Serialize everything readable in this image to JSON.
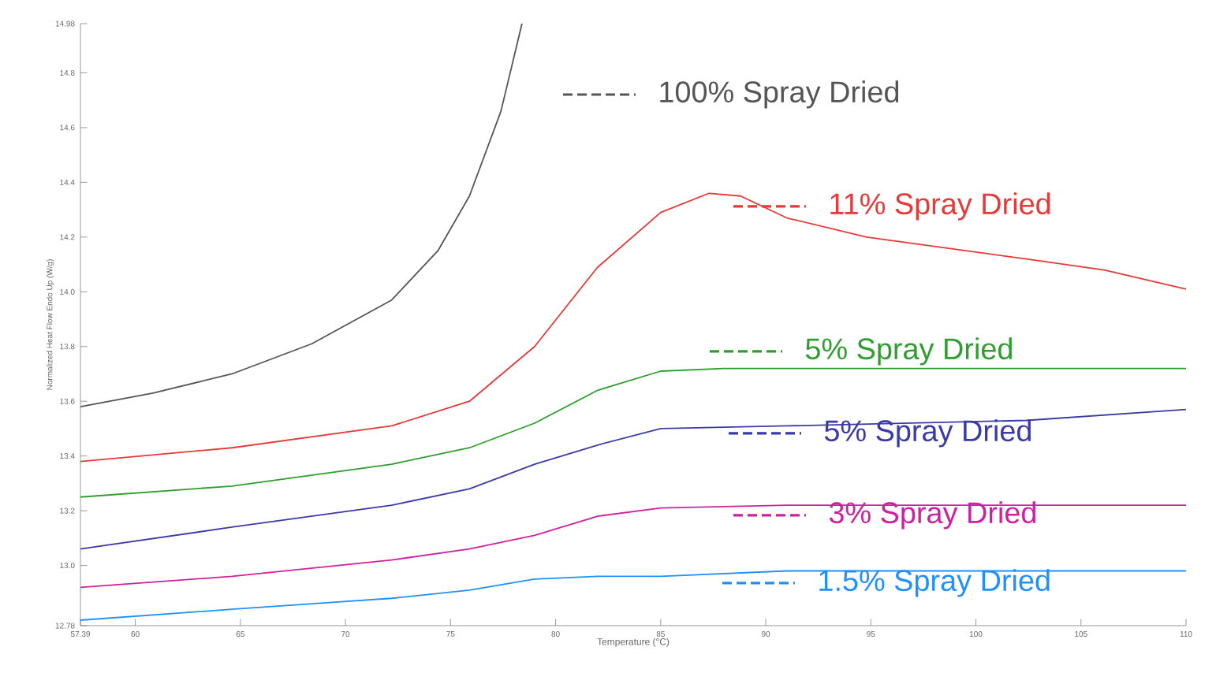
{
  "chart_data": {
    "type": "line",
    "xlabel": "Temperature (°C)",
    "ylabel": "Normalized Heat Flow Endo Up (W/g)",
    "xlim": [
      57.39,
      110
    ],
    "xticks": [
      57.39,
      60,
      65,
      70,
      75,
      80,
      85,
      90,
      95,
      100,
      105,
      110
    ],
    "ylim": [
      12.78,
      14.98
    ],
    "legend": "right",
    "yticks": [
      12.78,
      {
        "value": 13.0,
        "label": "13.0"
      },
      13.2,
      13.4,
      13.6,
      13.8,
      {
        "value": 14.0,
        "label": "14.0"
      },
      14.2,
      14.4,
      14.6,
      14.8,
      14.98
    ],
    "series": [
      {
        "name": "100% Spray Dried",
        "color": "#555555",
        "x": [
          57.39,
          60.83,
          64.6,
          68.4,
          72.2,
          74.4,
          75.9,
          77.4,
          78.4
        ],
        "values": [
          13.58,
          13.63,
          13.7,
          13.81,
          13.97,
          14.15,
          14.35,
          14.66,
          14.98
        ]
      },
      {
        "name": "11% Spray Dried",
        "color": "#e83838",
        "x": [
          57.39,
          64.6,
          72.2,
          75.9,
          79.0,
          82.0,
          85.0,
          87.3,
          88.8,
          91.0,
          94.8,
          98.6,
          102.4,
          106.1,
          110
        ],
        "values": [
          13.38,
          13.43,
          13.51,
          13.6,
          13.8,
          14.09,
          14.29,
          14.36,
          14.35,
          14.27,
          14.2,
          14.16,
          14.12,
          14.08,
          14.01
        ]
      },
      {
        "name": "5% Spray Dried",
        "color": "#2e9e2e",
        "x": [
          57.39,
          64.6,
          72.2,
          75.9,
          79.0,
          82.0,
          85.0,
          88.0,
          94.8,
          110
        ],
        "values": [
          13.25,
          13.29,
          13.37,
          13.43,
          13.52,
          13.64,
          13.71,
          13.72,
          13.72,
          13.72
        ]
      },
      {
        "name": "5% Spray Dried",
        "color": "#3a3aa8",
        "x": [
          57.39,
          64.6,
          72.2,
          75.9,
          79.0,
          82.0,
          85.0,
          91.0,
          102.4,
          110
        ],
        "values": [
          13.06,
          13.14,
          13.22,
          13.28,
          13.37,
          13.44,
          13.5,
          13.51,
          13.53,
          13.57
        ]
      },
      {
        "name": "3% Spray Dried",
        "color": "#d020a0",
        "x": [
          57.39,
          64.6,
          72.2,
          75.9,
          79.0,
          82.0,
          85.0,
          91.0,
          110
        ],
        "values": [
          12.92,
          12.96,
          13.02,
          13.06,
          13.11,
          13.18,
          13.21,
          13.22,
          13.22
        ]
      },
      {
        "name": "1.5% Spray Dried",
        "color": "#1e90ff",
        "x": [
          57.39,
          64.6,
          72.2,
          75.9,
          79.0,
          82.0,
          85.0,
          91.0,
          110
        ],
        "values": [
          12.8,
          12.84,
          12.88,
          12.91,
          12.95,
          12.96,
          12.96,
          12.98,
          12.98
        ]
      }
    ]
  }
}
